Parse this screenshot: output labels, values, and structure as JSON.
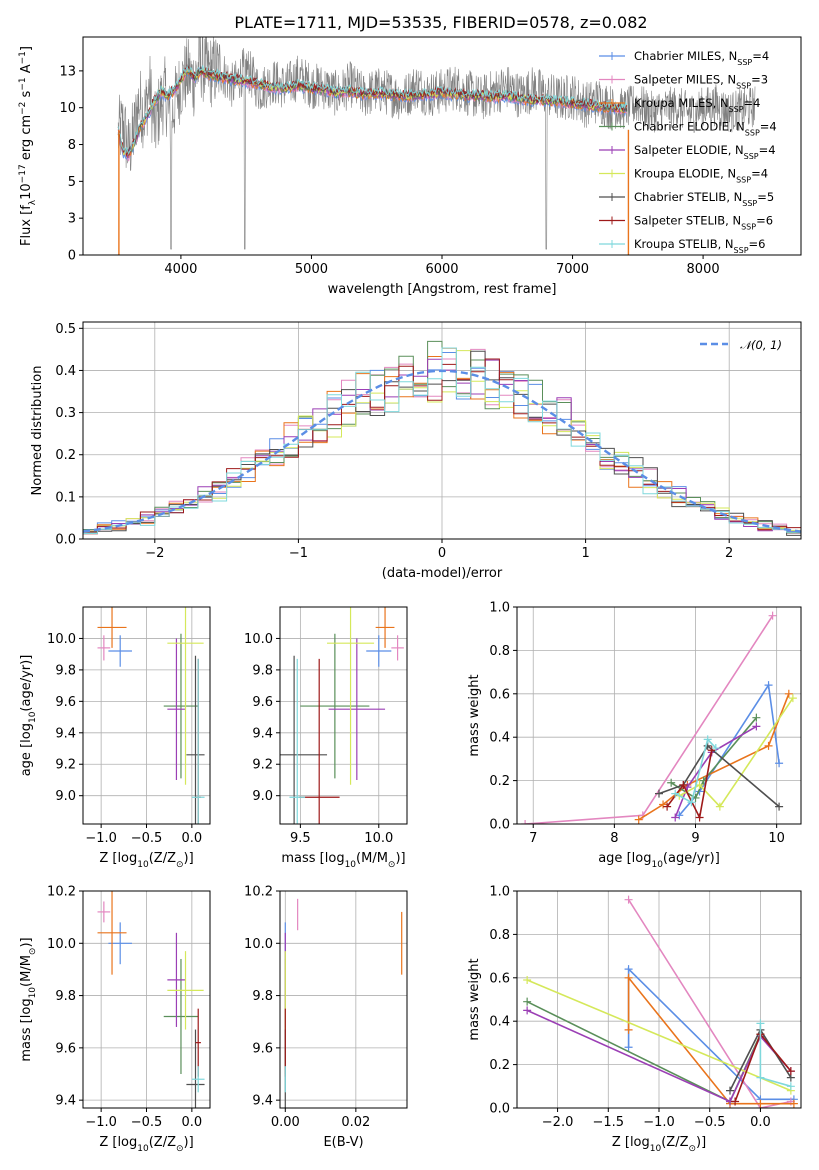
{
  "figure": {
    "title": "PLATE=1711, MJD=53535, FIBERID=0578, z=0.082"
  },
  "colors": {
    "series": [
      "#5b8ee6",
      "#e387c0",
      "#e9741c",
      "#5a8f5a",
      "#9b3fb5",
      "#d5e85a",
      "#4f4f4f",
      "#9e1a1a",
      "#7fd8dc"
    ],
    "observed": "#808080",
    "normal_curve": "#5b8ee6"
  },
  "chart_data": [
    {
      "id": "spectrum",
      "type": "line",
      "xlabel": "wavelength [Angstrom, rest frame]",
      "ylabel": "Flux [fλ10⁻¹⁷ erg cm⁻² s⁻¹ A⁻¹]",
      "xlim": [
        3250,
        8750
      ],
      "ylim": [
        0,
        14.8
      ],
      "xticks": [
        4000,
        5000,
        6000,
        7000,
        8000
      ],
      "yticks": [
        0.0,
        2.5,
        5.0,
        7.5,
        10.0,
        12.5
      ],
      "grid": false,
      "legend_position": "top-right",
      "observed": {
        "x": [
          3520,
          3560,
          3600,
          3640,
          3680,
          3720,
          3760,
          3800,
          3840,
          3880,
          3920,
          3960,
          4000,
          4050,
          4100,
          4150,
          4200,
          4300,
          4400,
          4500,
          4600,
          4700,
          4800,
          4900,
          5000,
          5100,
          5200,
          5300,
          5400,
          5500,
          5600,
          5700,
          5800,
          5900,
          6000,
          6100,
          6200,
          6300,
          6400,
          6500,
          6600,
          6700,
          6800,
          6900,
          7000,
          7100,
          7200,
          7300,
          7400,
          7500,
          7600,
          7700,
          7800,
          7900,
          8000,
          8100,
          8200,
          8300,
          8400
        ],
        "y": [
          8.2,
          8.8,
          7.0,
          8.3,
          10.5,
          9.5,
          11.4,
          8.5,
          10.2,
          11.0,
          9.0,
          10.5,
          11.6,
          12.3,
          11.8,
          13.1,
          12.4,
          12.6,
          11.4,
          12.8,
          11.2,
          11.8,
          11.4,
          12.1,
          11.5,
          11.4,
          10.9,
          11.6,
          10.8,
          11.2,
          11.0,
          10.6,
          11.5,
          10.9,
          11.1,
          11.4,
          11.0,
          10.6,
          11.1,
          11.4,
          10.8,
          11.3,
          10.9,
          10.6,
          10.8,
          10.2,
          10.5,
          10.0,
          9.9,
          10.3,
          9.7,
          9.9,
          10.1,
          9.6,
          10.0,
          10.2,
          9.7,
          9.9,
          10.1
        ],
        "noise_amplitude": 1.6
      },
      "model": {
        "x": [
          3520,
          3560,
          3600,
          3650,
          3700,
          3750,
          3800,
          3850,
          3900,
          3950,
          4000,
          4050,
          4100,
          4150,
          4200,
          4300,
          4400,
          4500,
          4600,
          4700,
          4800,
          4900,
          5000,
          5100,
          5200,
          5300,
          5400,
          5500,
          5600,
          5700,
          5800,
          5900,
          6000,
          6100,
          6200,
          6300,
          6400,
          6500,
          6600,
          6700,
          6800,
          6900,
          7000,
          7100,
          7200,
          7300,
          7420
        ],
        "y": [
          8.3,
          7.0,
          6.8,
          7.8,
          8.9,
          9.6,
          10.5,
          11.1,
          10.8,
          11.2,
          11.9,
          12.6,
          12.0,
          12.5,
          12.3,
          12.1,
          11.9,
          11.8,
          11.6,
          11.4,
          11.3,
          11.5,
          11.3,
          11.2,
          11.0,
          11.1,
          10.9,
          11.0,
          10.9,
          10.8,
          10.8,
          10.9,
          11.0,
          10.9,
          10.8,
          10.8,
          10.7,
          10.8,
          10.6,
          10.5,
          10.5,
          10.4,
          10.3,
          10.2,
          10.1,
          10.0,
          9.9
        ]
      },
      "absorption_x": [
        3925,
        4490,
        6800
      ],
      "series_names": [
        "Chabrier MILES, N_SSP=4",
        "Salpeter MILES, N_SSP=3",
        "Kroupa MILES, N_SSP=4",
        "Chabrier ELODIE, N_SSP=4",
        "Salpeter ELODIE, N_SSP=4",
        "Kroupa ELODIE, N_SSP=4",
        "Chabrier STELIB, N_SSP=5",
        "Salpeter STELIB, N_SSP=6",
        "Kroupa STELIB, N_SSP=6"
      ],
      "legend": [
        {
          "pre": "Chabrier MILES, N",
          "sub": "SSP",
          "post": "=4"
        },
        {
          "pre": "Salpeter MILES, N",
          "sub": "SSP",
          "post": "=3"
        },
        {
          "pre": "Kroupa MILES, N",
          "sub": "SSP",
          "post": "=4"
        },
        {
          "pre": "Chabrier ELODIE, N",
          "sub": "SSP",
          "post": "=4"
        },
        {
          "pre": "Salpeter ELODIE, N",
          "sub": "SSP",
          "post": "=4"
        },
        {
          "pre": "Kroupa ELODIE, N",
          "sub": "SSP",
          "post": "=4"
        },
        {
          "pre": "Chabrier STELIB, N",
          "sub": "SSP",
          "post": "=5"
        },
        {
          "pre": "Salpeter STELIB, N",
          "sub": "SSP",
          "post": "=6"
        },
        {
          "pre": "Kroupa STELIB, N",
          "sub": "SSP",
          "post": "=6"
        }
      ]
    },
    {
      "id": "residuals",
      "type": "bar",
      "xlabel": "(data-model)/error",
      "ylabel": "Normed distribution",
      "xlim": [
        -2.5,
        2.5
      ],
      "ylim": [
        0,
        0.515
      ],
      "xticks": [
        -2,
        -1,
        0,
        1,
        2
      ],
      "yticks": [
        0.0,
        0.1,
        0.2,
        0.3,
        0.4,
        0.5
      ],
      "grid": true,
      "legend_position": "top-right",
      "legend_label": "𝒩(0, 1)",
      "bin_width": 0.1,
      "normal": {
        "mu": 0,
        "sigma": 1
      }
    },
    {
      "id": "age_vs_Z",
      "type": "scatter",
      "xlabel": "Z [log10(Z/Z⊙)]",
      "ylabel": "age [log10(age/yr)]",
      "xlim": [
        -1.2,
        0.2
      ],
      "ylim": [
        8.82,
        10.2
      ],
      "xticks": [
        -1.0,
        -0.5,
        0.0
      ],
      "yticks": [
        9.0,
        9.2,
        9.4,
        9.6,
        9.8,
        10.0
      ],
      "grid": true,
      "points": [
        {
          "x": -0.79,
          "xerr": 0.13,
          "y": 9.92,
          "yerr": 0.1
        },
        {
          "x": -0.97,
          "xerr": 0.07,
          "y": 9.94,
          "yerr": 0.08
        },
        {
          "x": -0.88,
          "xerr": 0.16,
          "y": 10.07,
          "yerr": 0.13
        },
        {
          "x": -0.12,
          "xerr": 0.19,
          "y": 9.57,
          "yerr": 0.46
        },
        {
          "x": -0.17,
          "xerr": 0.1,
          "y": 9.55,
          "yerr": 0.45
        },
        {
          "x": -0.07,
          "xerr": 0.2,
          "y": 9.97,
          "yerr": 0.9
        },
        {
          "x": 0.04,
          "xerr": 0.1,
          "y": 9.26,
          "yerr": 0.63
        },
        {
          "x": 0.07,
          "xerr": 0.03,
          "y": 8.99,
          "yerr": 0.88
        },
        {
          "x": 0.07,
          "xerr": 0.07,
          "y": 8.99,
          "yerr": 0.88
        }
      ]
    },
    {
      "id": "age_vs_mass",
      "type": "scatter",
      "xlabel": "mass [log10(M/M⊙)]",
      "ylabel": "",
      "xlim": [
        9.37,
        10.18
      ],
      "ylim": [
        8.82,
        10.2
      ],
      "xticks": [
        9.5,
        10.0
      ],
      "yticks": [
        9.0,
        9.2,
        9.4,
        9.6,
        9.8,
        10.0
      ],
      "grid": true,
      "points": [
        {
          "x": 10.0,
          "xerr": 0.08,
          "y": 9.92,
          "yerr": 0.1
        },
        {
          "x": 10.12,
          "xerr": 0.04,
          "y": 9.94,
          "yerr": 0.08
        },
        {
          "x": 10.04,
          "xerr": 0.06,
          "y": 10.07,
          "yerr": 0.13
        },
        {
          "x": 9.72,
          "xerr": 0.22,
          "y": 9.57,
          "yerr": 0.46
        },
        {
          "x": 9.86,
          "xerr": 0.18,
          "y": 9.55,
          "yerr": 0.45
        },
        {
          "x": 9.82,
          "xerr": 0.15,
          "y": 9.97,
          "yerr": 0.9
        },
        {
          "x": 9.46,
          "xerr": 0.21,
          "y": 9.26,
          "yerr": 0.63
        },
        {
          "x": 9.62,
          "xerr": 0.13,
          "y": 8.99,
          "yerr": 0.88
        },
        {
          "x": 9.48,
          "xerr": 0.05,
          "y": 8.99,
          "yerr": 0.88
        }
      ]
    },
    {
      "id": "weight_vs_age",
      "type": "line",
      "xlabel": "age [log10(age/yr)]",
      "ylabel": "mass weight",
      "xlim": [
        6.8,
        10.3
      ],
      "ylim": [
        0,
        1.0
      ],
      "xticks": [
        7,
        8,
        9,
        10
      ],
      "yticks": [
        0.0,
        0.2,
        0.4,
        0.6,
        0.8,
        1.0
      ],
      "grid": true,
      "series": [
        {
          "name": "Chabrier MILES",
          "x": [
            8.8,
            9.05,
            9.9,
            10.03
          ],
          "y": [
            0.04,
            0.15,
            0.64,
            0.28
          ]
        },
        {
          "name": "Salpeter MILES",
          "x": [
            6.9,
            8.35,
            9.95
          ],
          "y": [
            0.0,
            0.04,
            0.96
          ]
        },
        {
          "name": "Kroupa MILES",
          "x": [
            8.3,
            8.6,
            8.9,
            9.9,
            10.15
          ],
          "y": [
            0.02,
            0.09,
            0.18,
            0.36,
            0.6
          ]
        },
        {
          "name": "Chabrier ELODIE",
          "x": [
            8.7,
            9.0,
            9.1,
            9.75
          ],
          "y": [
            0.19,
            0.12,
            0.2,
            0.49
          ]
        },
        {
          "name": "Salpeter ELODIE",
          "x": [
            8.75,
            8.9,
            9.2,
            9.75
          ],
          "y": [
            0.03,
            0.17,
            0.33,
            0.45
          ]
        },
        {
          "name": "Kroupa ELODIE",
          "x": [
            8.8,
            9.05,
            9.3,
            10.2
          ],
          "y": [
            0.13,
            0.18,
            0.08,
            0.58
          ]
        },
        {
          "name": "Chabrier STELIB",
          "x": [
            8.55,
            8.85,
            9.15,
            10.03
          ],
          "y": [
            0.14,
            0.18,
            0.36,
            0.08
          ]
        },
        {
          "name": "Salpeter STELIB",
          "x": [
            8.65,
            8.85,
            9.05,
            9.2
          ],
          "y": [
            0.08,
            0.18,
            0.03,
            0.34
          ]
        },
        {
          "name": "Kroupa STELIB",
          "x": [
            8.75,
            8.95,
            9.15,
            9.25
          ],
          "y": [
            0.14,
            0.1,
            0.39,
            0.35
          ]
        }
      ]
    },
    {
      "id": "mass_vs_Z",
      "type": "scatter",
      "xlabel": "Z [log10(Z/Z⊙)]",
      "ylabel": "mass [log10(M/M⊙)]",
      "xlim": [
        -1.2,
        0.2
      ],
      "ylim": [
        9.37,
        10.2
      ],
      "xticks": [
        -1.0,
        -0.5,
        0.0
      ],
      "yticks": [
        9.4,
        9.6,
        9.8,
        10.0,
        10.2
      ],
      "grid": true,
      "points": [
        {
          "x": -0.79,
          "xerr": 0.13,
          "y": 10.0,
          "yerr": 0.08
        },
        {
          "x": -0.97,
          "xerr": 0.07,
          "y": 10.12,
          "yerr": 0.04
        },
        {
          "x": -0.88,
          "xerr": 0.16,
          "y": 10.04,
          "yerr": 0.16
        },
        {
          "x": -0.12,
          "xerr": 0.19,
          "y": 9.72,
          "yerr": 0.22
        },
        {
          "x": -0.17,
          "xerr": 0.1,
          "y": 9.86,
          "yerr": 0.18
        },
        {
          "x": -0.07,
          "xerr": 0.2,
          "y": 9.82,
          "yerr": 0.15
        },
        {
          "x": 0.04,
          "xerr": 0.1,
          "y": 9.46,
          "yerr": 0.21
        },
        {
          "x": 0.07,
          "xerr": 0.03,
          "y": 9.62,
          "yerr": 0.13
        },
        {
          "x": 0.07,
          "xerr": 0.07,
          "y": 9.48,
          "yerr": 0.05
        }
      ]
    },
    {
      "id": "mass_vs_EBV",
      "type": "scatter",
      "xlabel": "E(B-V)",
      "ylabel": "",
      "xlim": [
        -0.0015,
        0.0345
      ],
      "ylim": [
        9.37,
        10.2
      ],
      "xticks": [
        0.0,
        0.02
      ],
      "yticks": [
        9.4,
        9.6,
        9.8,
        10.0,
        10.2
      ],
      "grid": true,
      "points": [
        {
          "x": 0.0,
          "xerr": 0.0,
          "y": 10.0,
          "yerr": 0.08
        },
        {
          "x": 0.0035,
          "xerr": 0.0,
          "y": 10.11,
          "yerr": 0.06
        },
        {
          "x": 0.033,
          "xerr": 0.0,
          "y": 10.0,
          "yerr": 0.12
        },
        {
          "x": 0.0,
          "xerr": 0.0,
          "y": 9.72,
          "yerr": 0.22
        },
        {
          "x": 0.0,
          "xerr": 0.0,
          "y": 9.86,
          "yerr": 0.18
        },
        {
          "x": 0.0,
          "xerr": 0.0,
          "y": 9.82,
          "yerr": 0.15
        },
        {
          "x": 0.0,
          "xerr": 0.0,
          "y": 9.46,
          "yerr": 0.21
        },
        {
          "x": 0.0,
          "xerr": 0.0,
          "y": 9.62,
          "yerr": 0.13
        },
        {
          "x": 0.0,
          "xerr": 0.0,
          "y": 9.48,
          "yerr": 0.05
        }
      ]
    },
    {
      "id": "weight_vs_Z",
      "type": "line",
      "xlabel": "Z [log10(Z/Z⊙)]",
      "ylabel": "mass weight",
      "xlim": [
        -2.4,
        0.4
      ],
      "ylim": [
        0,
        1.0
      ],
      "xticks": [
        -2.0,
        -1.5,
        -1.0,
        -0.5,
        0.0
      ],
      "yticks": [
        0.0,
        0.2,
        0.4,
        0.6,
        0.8,
        1.0
      ],
      "grid": true,
      "series": [
        {
          "name": "Chabrier MILES",
          "x": [
            -1.3,
            -1.3,
            0.0,
            0.33
          ],
          "y": [
            0.28,
            0.64,
            0.04,
            0.04
          ]
        },
        {
          "name": "Salpeter MILES",
          "x": [
            -1.3,
            0.0,
            0.3
          ],
          "y": [
            0.96,
            0.0,
            0.03
          ]
        },
        {
          "name": "Kroupa MILES",
          "x": [
            -1.3,
            -1.3,
            -0.3,
            0.0,
            0.33
          ],
          "y": [
            0.36,
            0.6,
            0.02,
            0.02,
            0.02
          ]
        },
        {
          "name": "Chabrier ELODIE",
          "x": [
            -2.3,
            -0.3,
            0.0
          ],
          "y": [
            0.49,
            0.03,
            0.34
          ]
        },
        {
          "name": "Salpeter ELODIE",
          "x": [
            -2.3,
            -0.3,
            0.0,
            0.3
          ],
          "y": [
            0.45,
            0.03,
            0.33,
            0.17
          ]
        },
        {
          "name": "Kroupa ELODIE",
          "x": [
            -2.3,
            0.3
          ],
          "y": [
            0.59,
            0.08
          ]
        },
        {
          "name": "Chabrier STELIB",
          "x": [
            -0.3,
            0.0,
            0.3
          ],
          "y": [
            0.08,
            0.36,
            0.14
          ]
        },
        {
          "name": "Salpeter STELIB",
          "x": [
            -0.25,
            0.0,
            0.3
          ],
          "y": [
            0.03,
            0.34,
            0.17
          ]
        },
        {
          "name": "Kroupa STELIB",
          "x": [
            0.0,
            0.0,
            0.3
          ],
          "y": [
            0.39,
            0.14,
            0.1
          ]
        }
      ]
    }
  ]
}
